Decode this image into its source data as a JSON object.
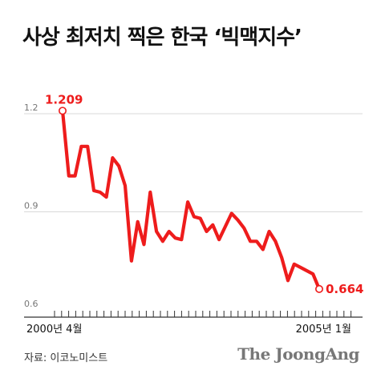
{
  "title": "사상 최저치 찍은 한국 ‘빅맥지수’",
  "source": "자료: 이코노미스트",
  "brand": "The JoongAng",
  "colors": {
    "line": "#ee1c1c",
    "grid": "#d9d9d9",
    "axis": "#333333",
    "tick_text": "#777777"
  },
  "chart_data": {
    "type": "line",
    "title": "사상 최저치 찍은 한국 ‘빅맥지수’",
    "xlabel": "",
    "ylabel": "",
    "ylim": [
      0.6,
      1.2
    ],
    "y_ticks": [
      "1.2",
      "0.9",
      "0.6"
    ],
    "x_tick_labels": [
      "2000년 4월",
      "2005년 1월"
    ],
    "grid": true,
    "series": [
      {
        "name": "",
        "values": [
          1.209,
          1.01,
          1.01,
          1.1,
          1.1,
          0.965,
          0.96,
          0.945,
          1.065,
          1.04,
          0.98,
          0.75,
          0.87,
          0.8,
          0.96,
          0.84,
          0.81,
          0.84,
          0.82,
          0.815,
          0.93,
          0.885,
          0.88,
          0.84,
          0.86,
          0.815,
          0.855,
          0.895,
          0.875,
          0.85,
          0.81,
          0.81,
          0.785,
          0.84,
          0.81,
          0.76,
          0.69,
          0.74,
          0.73,
          0.72,
          0.71,
          0.664
        ]
      }
    ],
    "annotations": [
      {
        "label": "1.209",
        "point": "first"
      },
      {
        "label": "0.664",
        "point": "last"
      }
    ]
  }
}
